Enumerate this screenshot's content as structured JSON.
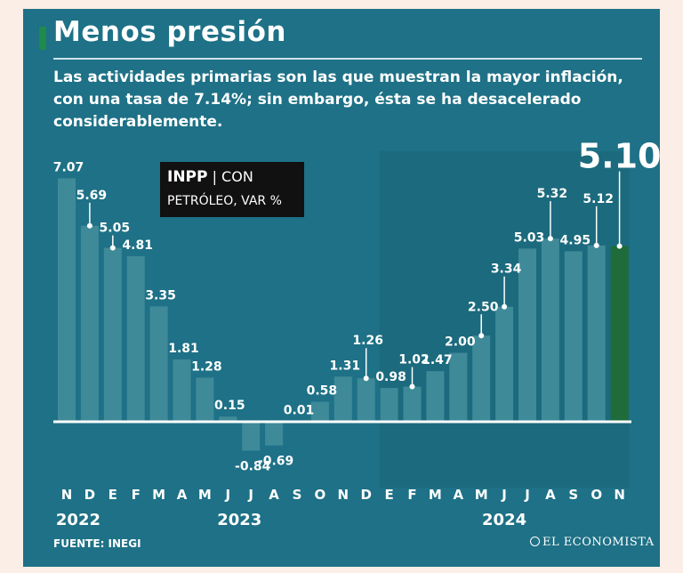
{
  "header": {
    "title": "Menos presión",
    "subtitle": "Las actividades primarias son las que muestran la mayor inflación, con una tasa de 7.14%; sin embargo, ésta se ha desacelerado considerablemente."
  },
  "legend": {
    "label_bold": "INPP",
    "label_rest": "| CON",
    "label_line2": "PETRÓLEO, VAR %"
  },
  "footer": {
    "source": "FUENTE: INEGI",
    "brand": "EL ECONOMISTA"
  },
  "colors": {
    "background": "#fbeee6",
    "panel": "#1e7186",
    "bar": "#3f8a99",
    "bar_highlight": "#1f6b3a",
    "accent": "#1f8a4c"
  },
  "chart_data": {
    "type": "bar",
    "categories": [
      "N",
      "D",
      "E",
      "F",
      "M",
      "A",
      "M",
      "J",
      "J",
      "A",
      "S",
      "O",
      "N",
      "D",
      "E",
      "F",
      "M",
      "A",
      "M",
      "J",
      "J",
      "A",
      "S",
      "O",
      "N"
    ],
    "values": [
      7.07,
      5.69,
      5.05,
      4.81,
      3.35,
      1.81,
      1.28,
      0.15,
      -0.84,
      -0.69,
      0.01,
      0.58,
      1.31,
      1.26,
      0.98,
      1.02,
      1.47,
      2.0,
      2.5,
      3.34,
      5.03,
      5.32,
      4.95,
      5.12,
      5.1
    ],
    "labels": [
      "7.07",
      "5.69",
      "5.05",
      "4.81",
      "3.35",
      "1.81",
      "1.28",
      "0.15",
      "-0.84",
      "-0.69",
      "0.01",
      "0.58",
      "1.31",
      "1.26",
      "0.98",
      "1.02",
      "1.47",
      "2.00",
      "2.50",
      "3.34",
      "5.03",
      "5.32",
      "4.95",
      "5.12",
      "5.10"
    ],
    "years": [
      {
        "label": "2022",
        "from": 0,
        "to": 1
      },
      {
        "label": "2023",
        "from": 2,
        "to": 13
      },
      {
        "label": "2024",
        "from": 14,
        "to": 24
      }
    ],
    "highlight_index": 24,
    "ylim": [
      -1.2,
      7.6
    ],
    "grid": false
  }
}
